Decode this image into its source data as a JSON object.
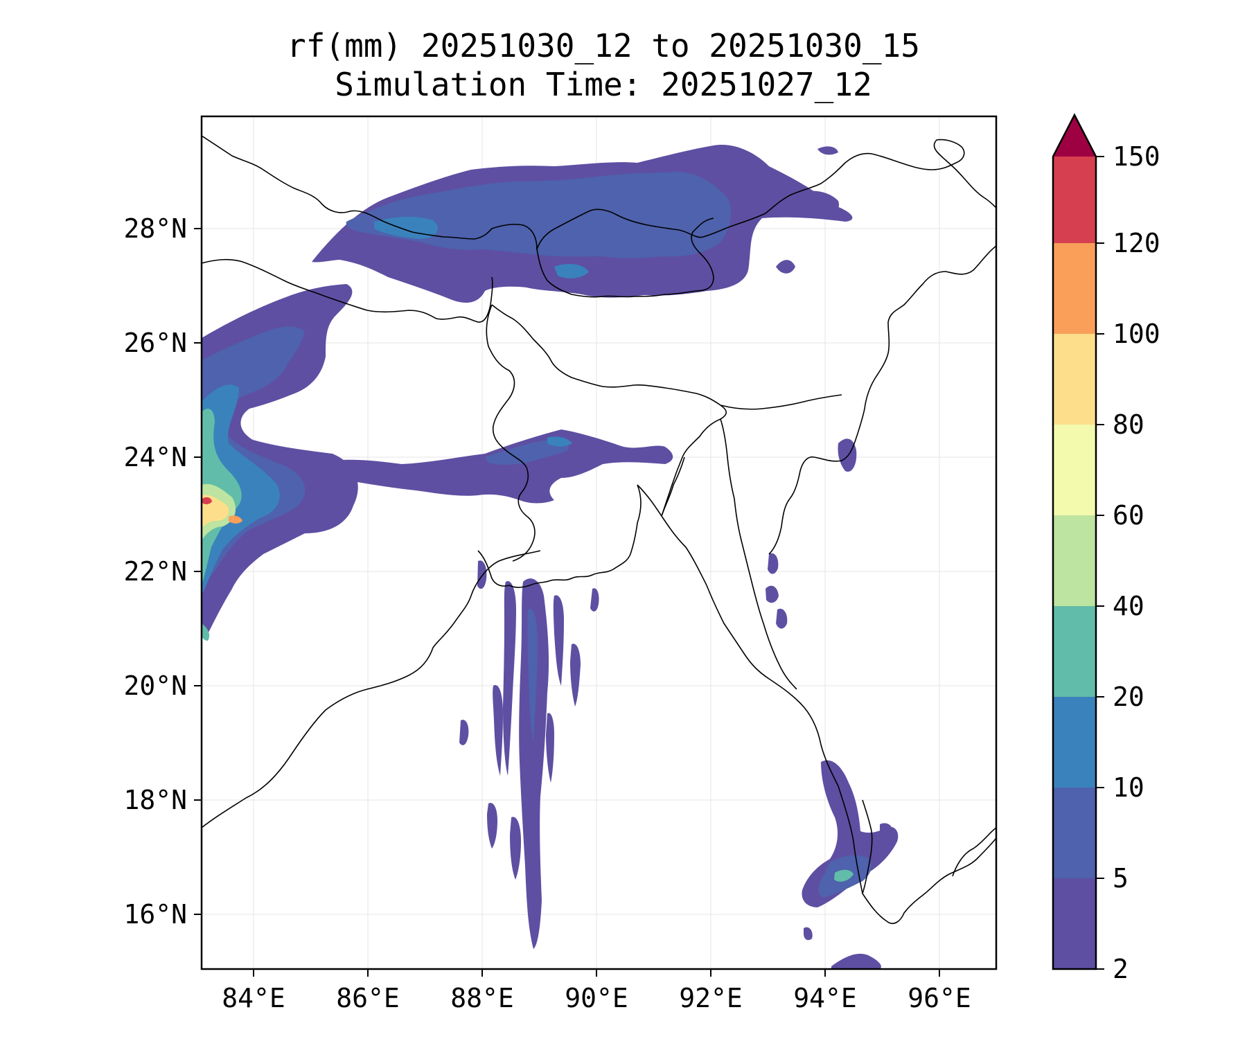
{
  "title_line1": "rf(mm) 20251030_12 to 20251030_15",
  "title_line2": "Simulation Time: 20251027_12",
  "map": {
    "lon_range": [
      83.1,
      97.0
    ],
    "lat_range": [
      15.0,
      30.0
    ],
    "x_ticks": [
      {
        "value": 84,
        "label": "84°E"
      },
      {
        "value": 86,
        "label": "86°E"
      },
      {
        "value": 88,
        "label": "88°E"
      },
      {
        "value": 90,
        "label": "90°E"
      },
      {
        "value": 92,
        "label": "92°E"
      },
      {
        "value": 94,
        "label": "94°E"
      },
      {
        "value": 96,
        "label": "96°E"
      }
    ],
    "y_ticks": [
      {
        "value": 16,
        "label": "16°N"
      },
      {
        "value": 18,
        "label": "18°N"
      },
      {
        "value": 20,
        "label": "20°N"
      },
      {
        "value": 22,
        "label": "22°N"
      },
      {
        "value": 24,
        "label": "24°N"
      },
      {
        "value": 26,
        "label": "26°N"
      },
      {
        "value": 28,
        "label": "28°N"
      }
    ]
  },
  "colorbar": {
    "levels": [
      "2",
      "5",
      "10",
      "20",
      "40",
      "60",
      "80",
      "100",
      "120",
      "150"
    ],
    "colors": [
      "#5e4fa2",
      "#4e62ad",
      "#3a82bc",
      "#61bda9",
      "#bde4a0",
      "#f3faad",
      "#fddf8b",
      "#f99f5a",
      "#d63f4f"
    ],
    "extend_color": "#9e0142"
  },
  "rain_colors": {
    "l2": "#5e4fa2",
    "l5": "#4e62ad",
    "l10": "#3a82bc",
    "l20": "#61bda9",
    "l40": "#bde4a0",
    "l60": "#f3faad",
    "l80": "#fddf8b",
    "l100": "#f99f5a",
    "l120": "#d63f4f"
  }
}
